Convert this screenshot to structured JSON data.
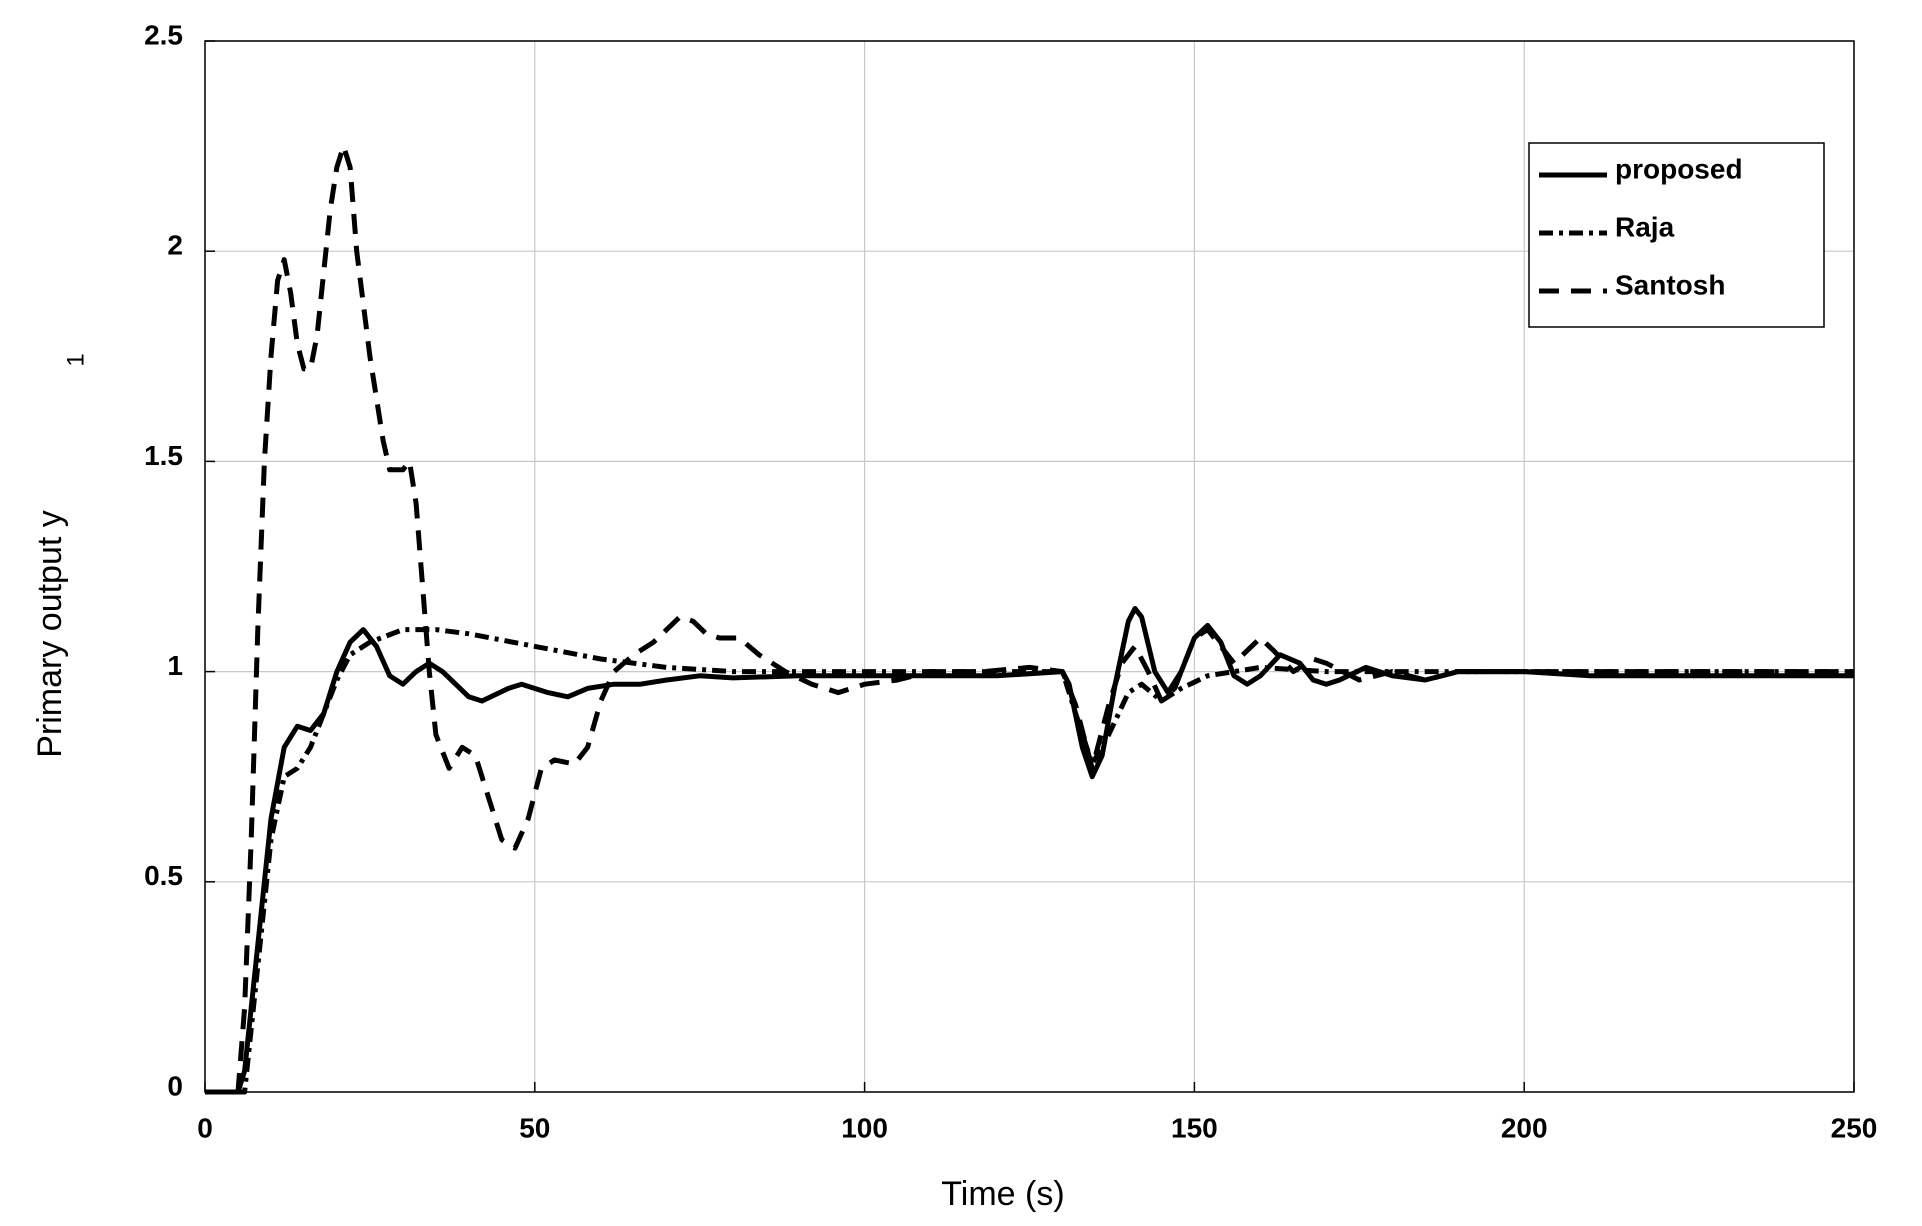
{
  "chart_data": {
    "type": "line",
    "x_label": "Time (s)",
    "y_label": "Primary output y",
    "y_label_subscript": "1",
    "xlim": [
      0,
      250
    ],
    "ylim": [
      0,
      2.5
    ],
    "xticks": [
      0,
      50,
      100,
      150,
      200,
      250
    ],
    "yticks": [
      0,
      0.5,
      1,
      1.5,
      2,
      2.5
    ],
    "grid": true,
    "legend_position": "upper right",
    "series": [
      {
        "name": "proposed",
        "color": "#000000",
        "style": "solid",
        "x": [
          0,
          5,
          6,
          8,
          10,
          12,
          14,
          16,
          18,
          20,
          22,
          24,
          26,
          28,
          30,
          32,
          34,
          36,
          40,
          42,
          46,
          48,
          52,
          55,
          58,
          62,
          66,
          70,
          75,
          80,
          90,
          100,
          120,
          130,
          131,
          133,
          134.5,
          136,
          138,
          140,
          141,
          142,
          144,
          146,
          148,
          150,
          152,
          154,
          156,
          158,
          160,
          163,
          166,
          168,
          170,
          172,
          176,
          180,
          185,
          190,
          200,
          210,
          250
        ],
        "values": [
          0,
          0,
          0.05,
          0.35,
          0.65,
          0.82,
          0.87,
          0.86,
          0.9,
          1.0,
          1.07,
          1.1,
          1.06,
          0.99,
          0.97,
          1.0,
          1.02,
          1.0,
          0.94,
          0.93,
          0.96,
          0.97,
          0.95,
          0.94,
          0.96,
          0.97,
          0.97,
          0.98,
          0.99,
          0.985,
          0.99,
          0.99,
          0.99,
          1.0,
          0.97,
          0.82,
          0.75,
          0.8,
          0.97,
          1.12,
          1.15,
          1.13,
          1.0,
          0.95,
          1.0,
          1.08,
          1.11,
          1.07,
          0.99,
          0.97,
          0.99,
          1.04,
          1.02,
          0.98,
          0.97,
          0.98,
          1.01,
          0.99,
          0.98,
          1.0,
          1.0,
          0.99,
          0.99
        ]
      },
      {
        "name": "Raja",
        "color": "#000000",
        "style": "dashdot",
        "x": [
          0,
          6,
          8,
          10,
          12,
          14,
          16,
          18,
          20,
          22,
          25,
          30,
          35,
          40,
          50,
          60,
          70,
          80,
          100,
          130,
          132,
          134.5,
          137,
          140,
          142,
          145,
          148,
          152,
          160,
          170,
          250
        ],
        "values": [
          0,
          0,
          0.3,
          0.6,
          0.75,
          0.77,
          0.82,
          0.9,
          0.98,
          1.04,
          1.07,
          1.1,
          1.1,
          1.09,
          1.06,
          1.03,
          1.01,
          1.0,
          1.0,
          1.0,
          0.9,
          0.78,
          0.85,
          0.95,
          0.97,
          0.93,
          0.96,
          0.99,
          1.01,
          1.0,
          1.0
        ]
      },
      {
        "name": "Santosh",
        "color": "#000000",
        "style": "dashed",
        "x": [
          0,
          5,
          6,
          7,
          8,
          9,
          10,
          11,
          12,
          13,
          14,
          15,
          16,
          17,
          18,
          19,
          20,
          21,
          22,
          23,
          25,
          27,
          28,
          30,
          31,
          32,
          33,
          34,
          35,
          37,
          39,
          41,
          43,
          45,
          47,
          49,
          51,
          53,
          56,
          58,
          60,
          62,
          65,
          68,
          70,
          72,
          74,
          76,
          78,
          81,
          84,
          88,
          92,
          96,
          100,
          105,
          110,
          118,
          125,
          130,
          132,
          134.5,
          137,
          139,
          141,
          143,
          145,
          147,
          150,
          152,
          154,
          156,
          158,
          160,
          162,
          165,
          168,
          170,
          175,
          180,
          185,
          190,
          200,
          250
        ],
        "values": [
          0,
          0,
          0.2,
          0.6,
          1.1,
          1.5,
          1.75,
          1.93,
          1.98,
          1.9,
          1.78,
          1.72,
          1.72,
          1.8,
          1.95,
          2.1,
          2.2,
          2.25,
          2.2,
          2.0,
          1.75,
          1.55,
          1.48,
          1.48,
          1.5,
          1.4,
          1.2,
          1.0,
          0.85,
          0.77,
          0.82,
          0.8,
          0.7,
          0.6,
          0.58,
          0.65,
          0.77,
          0.79,
          0.78,
          0.82,
          0.93,
          1.0,
          1.04,
          1.07,
          1.1,
          1.13,
          1.12,
          1.09,
          1.08,
          1.08,
          1.04,
          1.0,
          0.97,
          0.95,
          0.97,
          0.98,
          1.0,
          1.0,
          1.01,
          1.0,
          0.92,
          0.77,
          0.92,
          1.02,
          1.06,
          1.0,
          0.93,
          0.96,
          1.08,
          1.1,
          1.06,
          1.02,
          1.05,
          1.08,
          1.05,
          1.0,
          1.03,
          1.02,
          0.98,
          1.0,
          0.98,
          1.0,
          1.0,
          1.0
        ]
      }
    ]
  }
}
